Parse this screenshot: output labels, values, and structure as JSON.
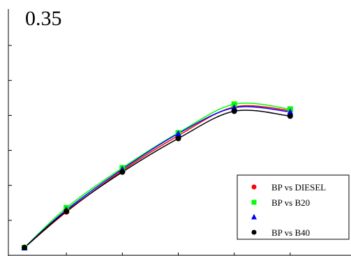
{
  "chart_data": {
    "type": "scatter",
    "title": "0.35",
    "xlabel": "",
    "ylabel": "",
    "xlim": [
      0,
      6
    ],
    "ylim": [
      0,
      0.35
    ],
    "grid": false,
    "legend_position": "bottom-right",
    "x": [
      0.25,
      1,
      2,
      3,
      4,
      5
    ],
    "series": [
      {
        "name": "BP vs DIESEL",
        "color": "#ff0000",
        "marker": "circle",
        "values": [
          0.011,
          0.062,
          0.121,
          0.171,
          0.212,
          0.207
        ]
      },
      {
        "name": "BP vs B20",
        "color": "#00ff00",
        "marker": "square",
        "values": [
          0.011,
          0.068,
          0.125,
          0.175,
          0.216,
          0.209
        ]
      },
      {
        "name": "",
        "color": "#0000ff",
        "marker": "triangle",
        "values": [
          0.011,
          0.065,
          0.123,
          0.174,
          0.211,
          0.205
        ]
      },
      {
        "name": "BP vs B40",
        "color": "#000000",
        "marker": "circle",
        "values": [
          0.011,
          0.063,
          0.119,
          0.167,
          0.206,
          0.199
        ]
      }
    ]
  }
}
